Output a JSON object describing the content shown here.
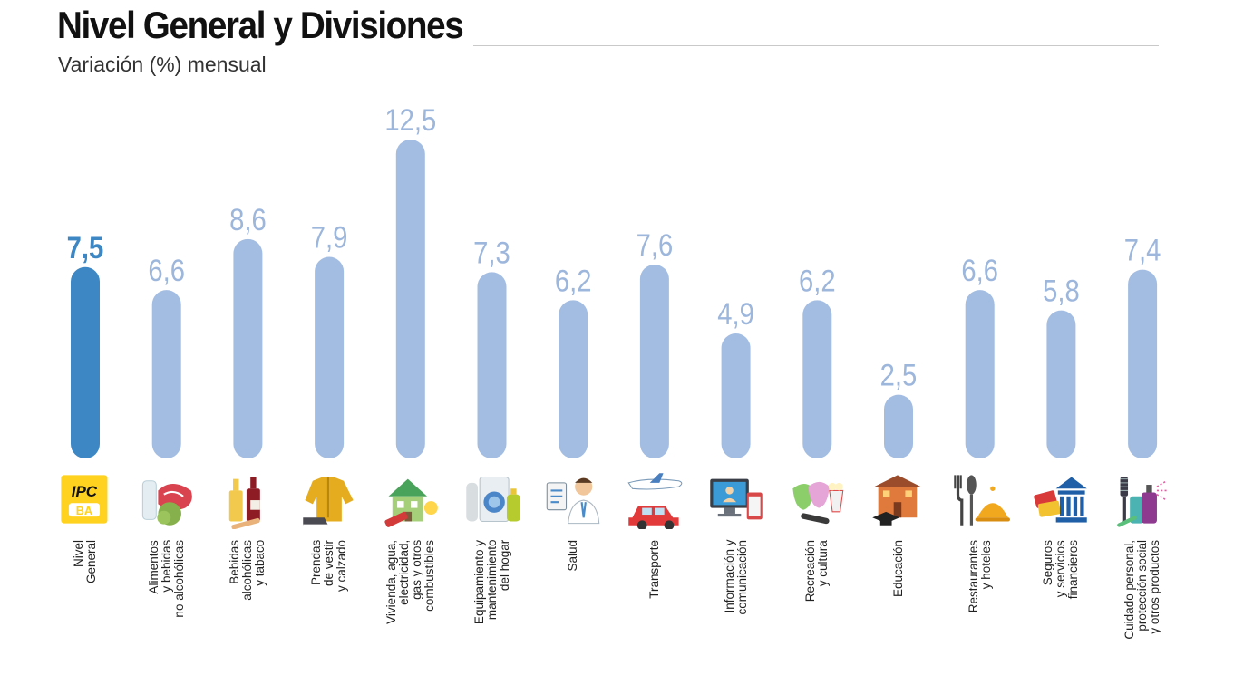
{
  "header": {
    "title": "Nivel General y Divisiones",
    "subtitle": "Variación (%) mensual"
  },
  "colors": {
    "highlight": "#3d87c4",
    "bar": "#a3bde2",
    "highlight_label": "#3d87c4",
    "label": "#9db6dc"
  },
  "chart_data": {
    "type": "bar",
    "title": "Nivel General y Divisiones",
    "subtitle": "Variación (%) mensual",
    "xlabel": "",
    "ylabel": "",
    "ylim": [
      0,
      12.5
    ],
    "grid": false,
    "legend": "none",
    "highlight_index": 0,
    "categories": [
      "Nivel\nGeneral",
      "Alimentos\ny bebidas\nno alcohólicas",
      "Bebidas\nalcohólicas\ny tabaco",
      "Prendas\nde vestir\ny calzado",
      "Vivienda, agua,\nelectricidad,\ngas y otros\ncombustibles",
      "Equipamiento y\nmantenimiento\ndel hogar",
      "Salud",
      "Transporte",
      "Información y\ncomunicación",
      "Recreación\ny cultura",
      "Educación",
      "Restaurantes\ny hoteles",
      "Seguros\ny servicios\nfinancieros",
      "Cuidado personal,\nprotección social\ny otros productos"
    ],
    "values": [
      7.5,
      6.6,
      8.6,
      7.9,
      12.5,
      7.3,
      6.2,
      7.6,
      4.9,
      6.2,
      2.5,
      6.6,
      5.8,
      7.4
    ],
    "value_labels": [
      "7,5",
      "6,6",
      "8,6",
      "7,9",
      "12,5",
      "7,3",
      "6,2",
      "7,6",
      "4,9",
      "6,2",
      "2,5",
      "6,6",
      "5,8",
      "7,4"
    ],
    "icons": [
      "ipc-ba-logo-icon",
      "food-icon",
      "drinks-tobacco-icon",
      "clothing-icon",
      "house-icon",
      "appliances-icon",
      "doctor-icon",
      "plane-car-icon",
      "computer-icon",
      "theater-popcorn-icon",
      "school-icon",
      "cutlery-cloche-icon",
      "bank-cards-icon",
      "personal-care-icon"
    ],
    "logo_text": [
      "IPC",
      "BA"
    ]
  }
}
